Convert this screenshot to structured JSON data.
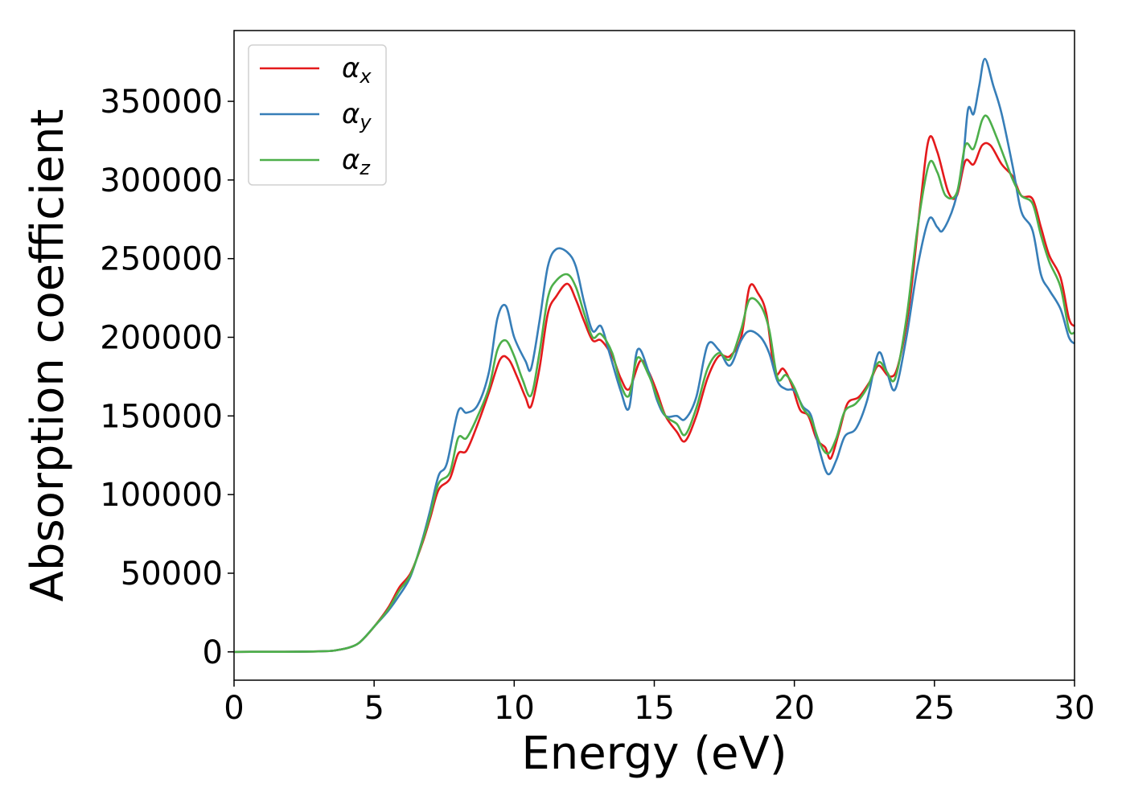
{
  "chart_data": {
    "type": "line",
    "xlabel": "Energy (eV)",
    "ylabel": "Absorption coefficient",
    "xlim": [
      0,
      30
    ],
    "ylim": [
      -18000,
      395000
    ],
    "xticks": [
      0,
      5,
      10,
      15,
      20,
      25,
      30
    ],
    "xtick_labels": [
      "0",
      "5",
      "10",
      "15",
      "20",
      "25",
      "30"
    ],
    "yticks": [
      0,
      50000,
      100000,
      150000,
      200000,
      250000,
      300000,
      350000
    ],
    "ytick_labels": [
      "0",
      "50000",
      "100000",
      "150000",
      "200000",
      "250000",
      "300000",
      "350000"
    ],
    "grid": false,
    "legend_position": "top-left",
    "series": [
      {
        "name": "α",
        "subscript": "x",
        "color": "#e41a1c",
        "points": [
          [
            0,
            0
          ],
          [
            3,
            300
          ],
          [
            3.8,
            1500
          ],
          [
            4.3,
            4000
          ],
          [
            4.6,
            8000
          ],
          [
            5,
            16000
          ],
          [
            5.5,
            28000
          ],
          [
            5.9,
            41000
          ],
          [
            6.3,
            50000
          ],
          [
            6.7,
            68000
          ],
          [
            7,
            85000
          ],
          [
            7.3,
            103000
          ],
          [
            7.7,
            110000
          ],
          [
            8,
            126000
          ],
          [
            8.3,
            128000
          ],
          [
            8.7,
            145000
          ],
          [
            9.1,
            165000
          ],
          [
            9.5,
            186000
          ],
          [
            9.8,
            186000
          ],
          [
            10.1,
            175000
          ],
          [
            10.4,
            162000
          ],
          [
            10.6,
            156000
          ],
          [
            10.9,
            180000
          ],
          [
            11.2,
            215000
          ],
          [
            11.5,
            226000
          ],
          [
            11.9,
            234000
          ],
          [
            12.2,
            224000
          ],
          [
            12.5,
            210000
          ],
          [
            12.8,
            198000
          ],
          [
            13.1,
            198000
          ],
          [
            13.5,
            188000
          ],
          [
            13.8,
            174000
          ],
          [
            14.1,
            167000
          ],
          [
            14.5,
            185000
          ],
          [
            14.8,
            178000
          ],
          [
            15.1,
            165000
          ],
          [
            15.4,
            150000
          ],
          [
            15.8,
            140000
          ],
          [
            16.1,
            134000
          ],
          [
            16.5,
            150000
          ],
          [
            16.9,
            174000
          ],
          [
            17.3,
            188000
          ],
          [
            17.7,
            188000
          ],
          [
            18.1,
            200000
          ],
          [
            18.4,
            232000
          ],
          [
            18.7,
            228000
          ],
          [
            19,
            215000
          ],
          [
            19.3,
            178000
          ],
          [
            19.6,
            180000
          ],
          [
            19.9,
            170000
          ],
          [
            20.2,
            154000
          ],
          [
            20.5,
            150000
          ],
          [
            20.8,
            135000
          ],
          [
            21.1,
            130000
          ],
          [
            21.3,
            123000
          ],
          [
            21.6,
            140000
          ],
          [
            21.9,
            158000
          ],
          [
            22.3,
            162000
          ],
          [
            22.7,
            172000
          ],
          [
            23,
            182000
          ],
          [
            23.4,
            175000
          ],
          [
            23.7,
            182000
          ],
          [
            24.1,
            220000
          ],
          [
            24.5,
            285000
          ],
          [
            24.8,
            326000
          ],
          [
            25.1,
            318000
          ],
          [
            25.5,
            292000
          ],
          [
            25.8,
            290000
          ],
          [
            26.1,
            312000
          ],
          [
            26.4,
            310000
          ],
          [
            26.7,
            322000
          ],
          [
            27,
            322000
          ],
          [
            27.4,
            310000
          ],
          [
            27.8,
            302000
          ],
          [
            28.1,
            290000
          ],
          [
            28.5,
            288000
          ],
          [
            28.8,
            270000
          ],
          [
            29.1,
            252000
          ],
          [
            29.5,
            238000
          ],
          [
            29.8,
            212000
          ],
          [
            30,
            207000
          ]
        ]
      },
      {
        "name": "α",
        "subscript": "y",
        "color": "#377eb8",
        "points": [
          [
            0,
            0
          ],
          [
            3,
            300
          ],
          [
            3.8,
            1500
          ],
          [
            4.3,
            4000
          ],
          [
            4.6,
            8000
          ],
          [
            5,
            16000
          ],
          [
            5.5,
            26000
          ],
          [
            5.9,
            36000
          ],
          [
            6.3,
            48000
          ],
          [
            6.7,
            70000
          ],
          [
            7,
            90000
          ],
          [
            7.3,
            112000
          ],
          [
            7.6,
            120000
          ],
          [
            8,
            153000
          ],
          [
            8.3,
            152000
          ],
          [
            8.7,
            157000
          ],
          [
            9.1,
            178000
          ],
          [
            9.4,
            212000
          ],
          [
            9.7,
            220000
          ],
          [
            10,
            200000
          ],
          [
            10.4,
            185000
          ],
          [
            10.6,
            180000
          ],
          [
            10.9,
            210000
          ],
          [
            11.2,
            245000
          ],
          [
            11.5,
            256000
          ],
          [
            11.9,
            254000
          ],
          [
            12.2,
            245000
          ],
          [
            12.5,
            222000
          ],
          [
            12.8,
            204000
          ],
          [
            13.1,
            207000
          ],
          [
            13.4,
            190000
          ],
          [
            13.8,
            166000
          ],
          [
            14.1,
            155000
          ],
          [
            14.4,
            192000
          ],
          [
            14.8,
            178000
          ],
          [
            15.1,
            160000
          ],
          [
            15.4,
            150000
          ],
          [
            15.8,
            150000
          ],
          [
            16.1,
            148000
          ],
          [
            16.5,
            162000
          ],
          [
            16.9,
            195000
          ],
          [
            17.3,
            192000
          ],
          [
            17.7,
            182000
          ],
          [
            18.1,
            198000
          ],
          [
            18.4,
            204000
          ],
          [
            18.8,
            200000
          ],
          [
            19.1,
            190000
          ],
          [
            19.4,
            172000
          ],
          [
            19.7,
            167000
          ],
          [
            20,
            166000
          ],
          [
            20.3,
            156000
          ],
          [
            20.6,
            150000
          ],
          [
            20.9,
            128000
          ],
          [
            21.2,
            113000
          ],
          [
            21.5,
            122000
          ],
          [
            21.8,
            137000
          ],
          [
            22.2,
            142000
          ],
          [
            22.6,
            160000
          ],
          [
            23,
            190000
          ],
          [
            23.3,
            178000
          ],
          [
            23.6,
            167000
          ],
          [
            24,
            200000
          ],
          [
            24.4,
            245000
          ],
          [
            24.8,
            275000
          ],
          [
            25.1,
            270000
          ],
          [
            25.3,
            268000
          ],
          [
            25.7,
            284000
          ],
          [
            26,
            310000
          ],
          [
            26.2,
            345000
          ],
          [
            26.4,
            342000
          ],
          [
            26.6,
            360000
          ],
          [
            26.8,
            377000
          ],
          [
            27.1,
            360000
          ],
          [
            27.4,
            342000
          ],
          [
            27.8,
            308000
          ],
          [
            28.1,
            280000
          ],
          [
            28.5,
            268000
          ],
          [
            28.8,
            240000
          ],
          [
            29.1,
            230000
          ],
          [
            29.5,
            218000
          ],
          [
            29.8,
            200000
          ],
          [
            30,
            196000
          ]
        ]
      },
      {
        "name": "α",
        "subscript": "z",
        "color": "#4daf4a",
        "points": [
          [
            0,
            0
          ],
          [
            3,
            300
          ],
          [
            3.8,
            1500
          ],
          [
            4.3,
            4000
          ],
          [
            4.6,
            8000
          ],
          [
            5,
            16000
          ],
          [
            5.5,
            27000
          ],
          [
            5.9,
            39000
          ],
          [
            6.3,
            49000
          ],
          [
            6.7,
            69000
          ],
          [
            7,
            87000
          ],
          [
            7.3,
            107000
          ],
          [
            7.7,
            114000
          ],
          [
            8,
            136000
          ],
          [
            8.3,
            136000
          ],
          [
            8.7,
            150000
          ],
          [
            9.1,
            168000
          ],
          [
            9.4,
            192000
          ],
          [
            9.7,
            198000
          ],
          [
            10,
            188000
          ],
          [
            10.3,
            173000
          ],
          [
            10.6,
            163000
          ],
          [
            10.9,
            190000
          ],
          [
            11.2,
            225000
          ],
          [
            11.5,
            236000
          ],
          [
            11.9,
            240000
          ],
          [
            12.2,
            232000
          ],
          [
            12.5,
            215000
          ],
          [
            12.8,
            200000
          ],
          [
            13.1,
            202000
          ],
          [
            13.5,
            190000
          ],
          [
            13.8,
            170000
          ],
          [
            14.1,
            163000
          ],
          [
            14.4,
            187000
          ],
          [
            14.8,
            176000
          ],
          [
            15.1,
            162000
          ],
          [
            15.4,
            150000
          ],
          [
            15.8,
            145000
          ],
          [
            16.1,
            138000
          ],
          [
            16.5,
            155000
          ],
          [
            16.9,
            180000
          ],
          [
            17.3,
            190000
          ],
          [
            17.7,
            186000
          ],
          [
            18.1,
            205000
          ],
          [
            18.4,
            224000
          ],
          [
            18.8,
            220000
          ],
          [
            19.1,
            205000
          ],
          [
            19.4,
            174000
          ],
          [
            19.7,
            176000
          ],
          [
            20,
            168000
          ],
          [
            20.3,
            155000
          ],
          [
            20.6,
            148000
          ],
          [
            20.9,
            133000
          ],
          [
            21.2,
            126000
          ],
          [
            21.5,
            136000
          ],
          [
            21.8,
            153000
          ],
          [
            22.2,
            158000
          ],
          [
            22.6,
            168000
          ],
          [
            23,
            184000
          ],
          [
            23.3,
            178000
          ],
          [
            23.6,
            174000
          ],
          [
            24,
            212000
          ],
          [
            24.4,
            270000
          ],
          [
            24.8,
            310000
          ],
          [
            25.1,
            305000
          ],
          [
            25.4,
            290000
          ],
          [
            25.8,
            292000
          ],
          [
            26.1,
            322000
          ],
          [
            26.4,
            320000
          ],
          [
            26.7,
            338000
          ],
          [
            26.9,
            340000
          ],
          [
            27.2,
            328000
          ],
          [
            27.5,
            314000
          ],
          [
            27.8,
            300000
          ],
          [
            28.1,
            290000
          ],
          [
            28.5,
            285000
          ],
          [
            28.8,
            265000
          ],
          [
            29.1,
            248000
          ],
          [
            29.5,
            232000
          ],
          [
            29.8,
            205000
          ],
          [
            30,
            203000
          ]
        ]
      }
    ]
  }
}
